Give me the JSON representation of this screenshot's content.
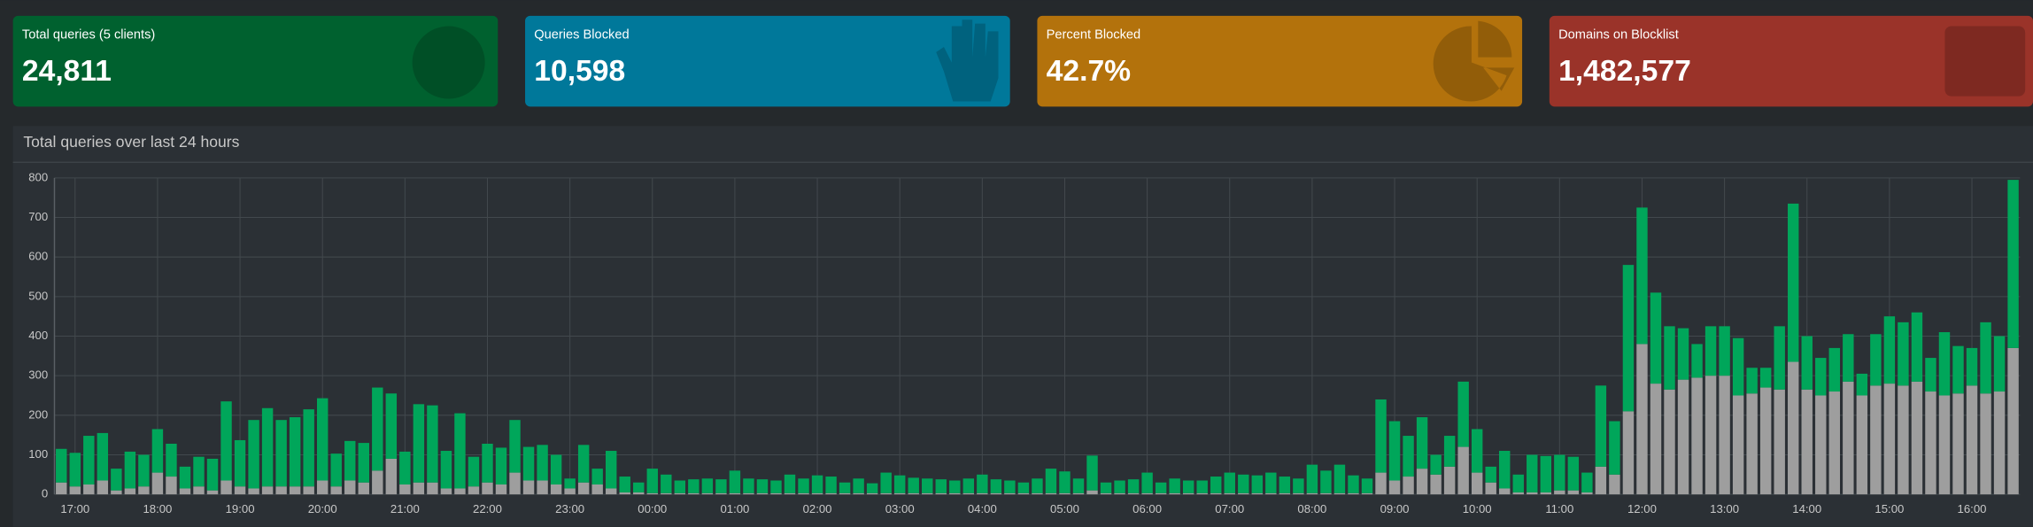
{
  "summary": [
    {
      "label": "Total queries (5 clients)",
      "value": "24,811",
      "color": "#00612f"
    },
    {
      "label": "Queries Blocked",
      "value": "10,598",
      "color": "#00789a"
    },
    {
      "label": "Percent Blocked",
      "value": "42.7%",
      "color": "#b3720c"
    },
    {
      "label": "Domains on Blocklist",
      "value": "1,482,577",
      "color": "#9a3329"
    }
  ],
  "chart_data": {
    "type": "bar",
    "stacked": true,
    "title": "Total queries over last 24 hours",
    "categories": [
      null,
      "17:00",
      null,
      null,
      null,
      null,
      null,
      "18:00",
      null,
      null,
      null,
      null,
      null,
      "19:00",
      null,
      null,
      null,
      null,
      null,
      "20:00",
      null,
      null,
      null,
      null,
      null,
      "21:00",
      null,
      null,
      null,
      null,
      null,
      "22:00",
      null,
      null,
      null,
      null,
      null,
      "23:00",
      null,
      null,
      null,
      null,
      null,
      "00:00",
      null,
      null,
      null,
      null,
      null,
      "01:00",
      null,
      null,
      null,
      null,
      null,
      "02:00",
      null,
      null,
      null,
      null,
      null,
      "03:00",
      null,
      null,
      null,
      null,
      null,
      "04:00",
      null,
      null,
      null,
      null,
      null,
      "05:00",
      null,
      null,
      null,
      null,
      null,
      "06:00",
      null,
      null,
      null,
      null,
      null,
      "07:00",
      null,
      null,
      null,
      null,
      null,
      "08:00",
      null,
      null,
      null,
      null,
      null,
      "09:00",
      null,
      null,
      null,
      null,
      null,
      "10:00",
      null,
      null,
      null,
      null,
      null,
      "11:00",
      null,
      null,
      null,
      null,
      null,
      "12:00",
      null,
      null,
      null,
      null,
      null,
      "13:00",
      null,
      null,
      null,
      null,
      null,
      "14:00",
      null,
      null,
      null,
      null,
      null,
      "15:00",
      null,
      null,
      null,
      null,
      null,
      "16:00",
      null,
      null,
      null
    ],
    "series": [
      {
        "color": "#9e9e9e",
        "values": [
          30,
          20,
          25,
          35,
          10,
          15,
          20,
          55,
          45,
          15,
          20,
          10,
          35,
          20,
          15,
          20,
          20,
          20,
          20,
          35,
          20,
          35,
          30,
          60,
          90,
          25,
          30,
          30,
          15,
          15,
          20,
          30,
          25,
          55,
          35,
          35,
          25,
          15,
          30,
          25,
          15,
          5,
          5,
          3,
          3,
          3,
          3,
          3,
          3,
          3,
          3,
          3,
          3,
          3,
          3,
          3,
          3,
          3,
          3,
          3,
          3,
          3,
          3,
          3,
          3,
          3,
          3,
          3,
          3,
          3,
          3,
          3,
          3,
          3,
          3,
          10,
          3,
          3,
          3,
          3,
          3,
          3,
          3,
          3,
          3,
          3,
          3,
          3,
          3,
          3,
          3,
          3,
          3,
          3,
          3,
          3,
          55,
          35,
          45,
          65,
          50,
          70,
          120,
          55,
          30,
          15,
          5,
          5,
          5,
          10,
          10,
          5,
          70,
          50,
          210,
          380,
          280,
          265,
          290,
          295,
          300,
          300,
          250,
          255,
          270,
          265,
          335,
          265,
          250,
          260,
          285,
          250,
          275,
          280,
          275,
          285,
          260,
          250,
          255,
          275,
          255,
          260,
          370
        ]
      },
      {
        "color": "#00a65a",
        "values": [
          85,
          85,
          123,
          120,
          55,
          93,
          80,
          110,
          83,
          55,
          75,
          80,
          200,
          117,
          173,
          198,
          168,
          175,
          195,
          208,
          83,
          100,
          100,
          210,
          165,
          83,
          198,
          195,
          95,
          190,
          75,
          98,
          93,
          133,
          85,
          90,
          75,
          25,
          95,
          40,
          95,
          40,
          25,
          62,
          47,
          32,
          35,
          37,
          35,
          57,
          37,
          35,
          32,
          47,
          37,
          45,
          42,
          27,
          37,
          25,
          52,
          45,
          39,
          37,
          35,
          32,
          37,
          47,
          35,
          32,
          27,
          37,
          62,
          55,
          37,
          88,
          27,
          32,
          35,
          52,
          27,
          37,
          32,
          32,
          42,
          52,
          47,
          45,
          52,
          42,
          37,
          72,
          57,
          72,
          45,
          37,
          185,
          150,
          103,
          130,
          50,
          78,
          165,
          110,
          40,
          95,
          45,
          95,
          92,
          90,
          85,
          50,
          205,
          135,
          370,
          345,
          230,
          160,
          130,
          85,
          125,
          125,
          145,
          65,
          50,
          160,
          400,
          135,
          95,
          110,
          120,
          55,
          130,
          170,
          160,
          175,
          85,
          160,
          120,
          95,
          180,
          140,
          425
        ]
      }
    ],
    "ylim": [
      0,
      800
    ],
    "yticks": [
      0,
      100,
      200,
      300,
      400,
      500,
      600,
      700,
      800
    ],
    "grid": true
  }
}
